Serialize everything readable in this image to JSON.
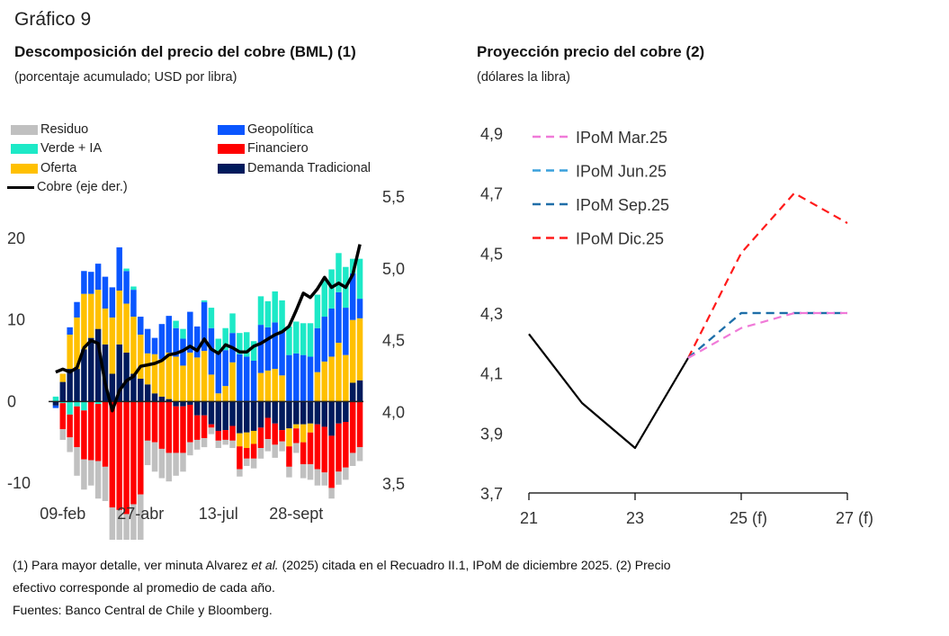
{
  "figure_label": "Gráfico 9",
  "footnotes": {
    "line1_a": "(1) Para mayor detalle, ver minuta Alvarez ",
    "line1_em": "et al.",
    "line1_b": " (2025) citada en el Recuadro II.1, IPoM de diciembre 2025. (2) Precio",
    "line2": "efectivo corresponde al promedio de cada año.",
    "line3": "Fuentes: Banco Central de Chile y Bloomberg."
  },
  "chart_data": [
    {
      "type": "bar",
      "stacked": true,
      "title": "Descomposición del precio del cobre (BML) (1)",
      "subtitle": "(porcentaje acumulado; USD por libra)",
      "ylim": [
        -10,
        20
      ],
      "yticks": [
        "20",
        "10",
        "0",
        "-10"
      ],
      "y2lim": [
        3.5,
        5.5
      ],
      "y2ticks": [
        "5,5",
        "5,0",
        "4,5",
        "4,0",
        "3,5"
      ],
      "xtick_labels": [
        {
          "label": "09-feb",
          "index": 1
        },
        {
          "label": "27-abr",
          "index": 12
        },
        {
          "label": "13-jul",
          "index": 23
        },
        {
          "label": "28-sept",
          "index": 34
        }
      ],
      "legend": [
        {
          "name": "Residuo",
          "color": "#c0c0c0",
          "kind": "bar"
        },
        {
          "name": "Verde + IA",
          "color": "#1de9c7",
          "kind": "bar"
        },
        {
          "name": "Oferta",
          "color": "#ffc000",
          "kind": "bar"
        },
        {
          "name": "Cobre (eje der.)",
          "color": "#000000",
          "kind": "line"
        },
        {
          "name": "Geopolítica",
          "color": "#0a56ff",
          "kind": "bar"
        },
        {
          "name": "Financiero",
          "color": "#ff0000",
          "kind": "bar"
        },
        {
          "name": "Demanda Tradicional",
          "color": "#001a5c",
          "kind": "bar"
        }
      ],
      "series": [
        {
          "name": "Demanda Tradicional",
          "color": "#001a5c",
          "values": [
            -0.5,
            2.4,
            4,
            4,
            6.4,
            7.8,
            8.9,
            7,
            3.4,
            7,
            6,
            3.4,
            2.8,
            2.1,
            1,
            0.6,
            0.3,
            -0.6,
            -0.6,
            -0.4,
            -1.7,
            -1.7,
            -2.8,
            -3.6,
            -3.5,
            -3,
            -3.9,
            -3.8,
            -3.6,
            -3.2,
            -2,
            -2.7,
            -3.5,
            -3.3,
            -2.8,
            -2.8,
            -2.7,
            -2.8,
            -3.1,
            -4.2,
            -2.7,
            -2.5,
            2.3,
            2.6
          ]
        },
        {
          "name": "Oferta",
          "color": "#ffc000",
          "values": [
            0,
            1,
            4.2,
            6.3,
            6.8,
            5.4,
            4.8,
            4.4,
            6.9,
            6.6,
            6,
            7,
            5.4,
            3.8,
            4.8,
            4.6,
            5.7,
            5.5,
            4.4,
            6,
            5.4,
            6.2,
            3.3,
            1,
            1.9,
            4.8,
            -1.6,
            -1.9,
            -1.6,
            3.5,
            3.8,
            4,
            3.2,
            -2.2,
            -0.5,
            -2.2,
            -1.1,
            3.6,
            4.9,
            5.5,
            7.2,
            5.7,
            7.7,
            7.6
          ]
        },
        {
          "name": "Geopolítica",
          "color": "#0a56ff",
          "values": [
            -0.3,
            0,
            0.9,
            1.9,
            2.8,
            2.7,
            3.2,
            3.9,
            3.7,
            5.3,
            4,
            3.3,
            2.2,
            3,
            2,
            4.3,
            4.5,
            3.5,
            3.3,
            5,
            3.8,
            6,
            5.7,
            5.1,
            4.4,
            3.6,
            5.8,
            5.5,
            5,
            5.9,
            5.3,
            5.7,
            5.5,
            5.7,
            5.9,
            5.7,
            5.5,
            5.4,
            5.5,
            5.9,
            6.2,
            5.8,
            5.7,
            2.4
          ]
        },
        {
          "name": "Verde + IA",
          "color": "#1de9c7",
          "values": [
            0.6,
            -0.2,
            -1.6,
            -0.6,
            -1.1,
            0,
            -0.3,
            0,
            0,
            0,
            0.3,
            0.4,
            0,
            0,
            0,
            0,
            0,
            0.9,
            1.2,
            0,
            0,
            0.2,
            2.5,
            1.6,
            2.7,
            2.4,
            2.6,
            3,
            2.4,
            3.5,
            3.2,
            3.8,
            3.7,
            3.5,
            3.9,
            3.9,
            4.1,
            4.1,
            4.6,
            4.8,
            4.8,
            5,
            1.8,
            4.9
          ]
        },
        {
          "name": "Financiero",
          "color": "#ff0000",
          "values": [
            0,
            -3.2,
            -2.8,
            -5,
            -6,
            -7.2,
            -7,
            -8,
            -13,
            -13.3,
            -13.8,
            -12.6,
            -11.4,
            -4.8,
            -5,
            -5.8,
            -6.3,
            -5.7,
            -5.7,
            -4.6,
            -3,
            -2.8,
            -0.4,
            -1.2,
            -1.2,
            -1.8,
            -2.8,
            -1.3,
            -1.8,
            -2.5,
            -2.6,
            -2.6,
            -1.4,
            -2.5,
            -1.8,
            -2.7,
            -3.9,
            -5.5,
            -5.6,
            -6.4,
            -5.9,
            -5.6,
            -6.3,
            -5.6
          ]
        },
        {
          "name": "Residuo",
          "color": "#c0c0c0",
          "values": [
            0,
            -1.3,
            -1.8,
            -3.5,
            -3.7,
            -3.1,
            -4.6,
            -4.2,
            -7.3,
            -8.2,
            -7.7,
            -7.1,
            -6.6,
            -3,
            -3.6,
            -3.6,
            -3.5,
            -2.8,
            -2.3,
            -1.6,
            -1.2,
            -1.1,
            -0.8,
            -0.9,
            -0.6,
            -0.9,
            -0.9,
            -0.9,
            -1.2,
            -1.3,
            -1.5,
            -1.6,
            -1.2,
            -1.3,
            -1.2,
            -1.7,
            -1.9,
            -2,
            -1.6,
            -1.3,
            -1.6,
            -1.5,
            -1.6,
            -1.7
          ]
        }
      ],
      "series_y2": {
        "name": "Cobre (eje der.)",
        "color": "#000000",
        "values": [
          4.28,
          4.3,
          4.28,
          4.31,
          4.45,
          4.5,
          4.48,
          4.2,
          4.01,
          4.15,
          4.22,
          4.25,
          4.32,
          4.33,
          4.34,
          4.36,
          4.4,
          4.41,
          4.43,
          4.46,
          4.43,
          4.51,
          4.44,
          4.41,
          4.47,
          4.45,
          4.42,
          4.42,
          4.46,
          4.48,
          4.51,
          4.54,
          4.56,
          4.6,
          4.71,
          4.83,
          4.8,
          4.86,
          4.94,
          4.87,
          4.9,
          4.87,
          4.96,
          5.17
        ]
      }
    },
    {
      "type": "line",
      "title": "Proyección precio del cobre (2)",
      "subtitle": "(dólares la libra)",
      "x": [
        21,
        22,
        23,
        24,
        25,
        26,
        27
      ],
      "xtick_labels": [
        {
          "label": "21",
          "x": 21
        },
        {
          "label": "23",
          "x": 23
        },
        {
          "label": "25 (f)",
          "x": 25
        },
        {
          "label": "27 (f)",
          "x": 27
        }
      ],
      "ylim": [
        3.7,
        4.9
      ],
      "yticks": [
        "4,9",
        "4,7",
        "4,5",
        "4,3",
        "4,1",
        "3,9",
        "3,7"
      ],
      "legend_position": "top-left",
      "series": [
        {
          "name": "Efectivo",
          "color": "#000000",
          "dashed": false,
          "x": [
            21,
            22,
            23,
            24
          ],
          "values": [
            4.23,
            4.0,
            3.85,
            4.15
          ],
          "in_legend": false
        },
        {
          "name": "IPoM Mar.25",
          "color": "#f07ad8",
          "dashed": true,
          "x": [
            24,
            25,
            26,
            27
          ],
          "values": [
            4.15,
            4.25,
            4.3,
            4.3
          ],
          "in_legend": true
        },
        {
          "name": "IPoM Jun.25",
          "color": "#3aa0dc",
          "dashed": true,
          "x": [
            24,
            25,
            26,
            27
          ],
          "values": [
            4.15,
            4.3,
            4.3,
            4.3
          ],
          "in_legend": true
        },
        {
          "name": "IPoM Sep.25",
          "color": "#1f6ea8",
          "dashed": true,
          "x": [
            24,
            25,
            26,
            27
          ],
          "values": [
            4.15,
            4.3,
            4.3,
            4.3
          ],
          "in_legend": true
        },
        {
          "name": "IPoM Dic.25",
          "color": "#ff1a1a",
          "dashed": true,
          "x": [
            24,
            25,
            26,
            27
          ],
          "values": [
            4.15,
            4.5,
            4.7,
            4.6
          ],
          "in_legend": true
        }
      ]
    }
  ]
}
